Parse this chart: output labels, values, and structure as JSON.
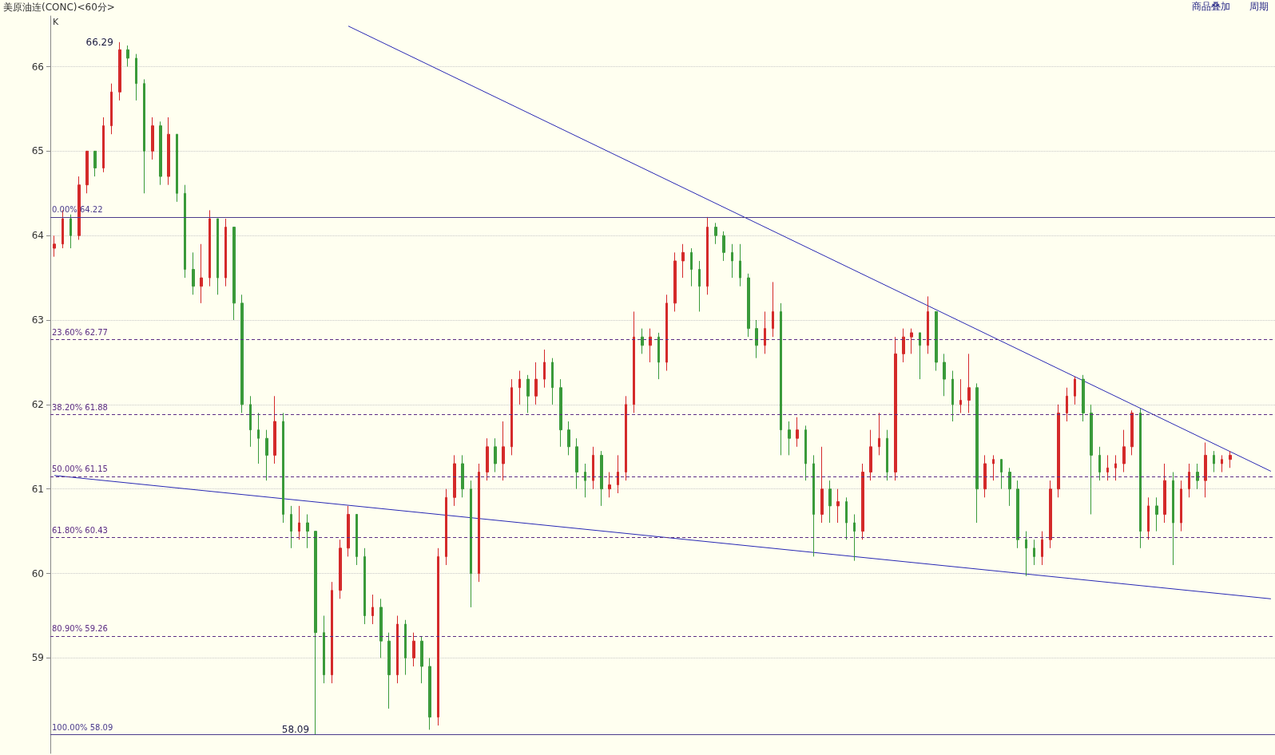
{
  "chart_data": {
    "type": "candlestick",
    "title": "美原油连(CONC)<60分>",
    "annotations": [
      "K",
      "商品叠加",
      "周期",
      "66.29",
      "58.09"
    ],
    "categories": [
      null,
      null,
      null,
      null,
      null,
      null,
      null,
      null,
      null,
      null,
      null,
      null,
      null,
      null,
      null,
      null,
      null,
      null,
      null,
      null,
      null,
      null,
      null,
      null,
      null,
      null,
      null,
      null,
      null,
      null,
      null,
      null,
      null,
      null,
      null,
      null,
      null,
      null,
      null,
      null,
      null,
      null,
      null,
      null,
      null,
      null,
      null,
      null,
      null,
      null,
      null,
      null,
      null,
      null,
      null,
      null,
      null,
      null,
      null,
      null,
      null,
      null,
      null,
      null,
      null,
      null,
      null,
      null,
      null,
      null,
      null,
      null,
      null,
      null,
      null,
      null,
      null,
      null,
      null,
      null,
      null,
      null,
      null,
      null,
      null,
      null,
      null,
      null,
      null,
      null,
      null,
      null,
      null,
      null,
      null,
      null,
      null,
      null,
      null,
      null,
      null,
      null,
      null,
      null,
      null,
      null,
      null,
      null,
      null,
      null,
      null,
      null,
      null,
      null,
      null,
      null,
      null,
      null,
      null,
      null,
      null,
      null,
      null,
      null,
      null,
      null,
      null,
      null,
      null,
      null,
      null,
      null,
      null,
      null,
      null,
      null,
      null,
      null,
      null,
      null,
      null,
      null,
      null,
      null,
      null,
      null,
      null,
      null,
      null,
      null
    ],
    "ohlc": [
      [
        63.85,
        64.0,
        63.75,
        63.9
      ],
      [
        63.9,
        64.3,
        63.85,
        64.2
      ],
      [
        64.2,
        64.25,
        63.85,
        64.0
      ],
      [
        64.0,
        64.7,
        63.95,
        64.6
      ],
      [
        64.6,
        65.0,
        64.5,
        65.0
      ],
      [
        65.0,
        65.0,
        64.7,
        64.8
      ],
      [
        64.8,
        65.4,
        64.75,
        65.3
      ],
      [
        65.3,
        65.8,
        65.2,
        65.7
      ],
      [
        65.7,
        66.29,
        65.6,
        66.2
      ],
      [
        66.2,
        66.25,
        66.0,
        66.1
      ],
      [
        66.1,
        66.15,
        65.6,
        65.8
      ],
      [
        65.8,
        65.85,
        64.5,
        65.0
      ],
      [
        65.0,
        65.4,
        64.9,
        65.3
      ],
      [
        65.3,
        65.35,
        64.6,
        64.7
      ],
      [
        64.7,
        65.4,
        64.6,
        65.2
      ],
      [
        65.2,
        65.2,
        64.4,
        64.5
      ],
      [
        64.5,
        64.6,
        63.5,
        63.6
      ],
      [
        63.6,
        63.8,
        63.3,
        63.4
      ],
      [
        63.4,
        63.9,
        63.2,
        63.5
      ],
      [
        63.5,
        64.3,
        63.4,
        64.2
      ],
      [
        64.2,
        64.2,
        63.3,
        63.5
      ],
      [
        63.5,
        64.2,
        63.4,
        64.1
      ],
      [
        64.1,
        64.1,
        63.0,
        63.2
      ],
      [
        63.2,
        63.3,
        61.9,
        62.0
      ],
      [
        62.0,
        62.1,
        61.5,
        61.7
      ],
      [
        61.7,
        61.9,
        61.3,
        61.6
      ],
      [
        61.6,
        61.7,
        61.1,
        61.4
      ],
      [
        61.4,
        62.1,
        61.3,
        61.8
      ],
      [
        61.8,
        61.9,
        60.6,
        60.7
      ],
      [
        60.7,
        60.8,
        60.3,
        60.5
      ],
      [
        60.5,
        60.8,
        60.4,
        60.6
      ],
      [
        60.6,
        60.7,
        60.3,
        60.5
      ],
      [
        60.5,
        60.5,
        58.09,
        59.3
      ],
      [
        59.3,
        59.5,
        58.7,
        58.8
      ],
      [
        58.8,
        59.9,
        58.7,
        59.8
      ],
      [
        59.8,
        60.4,
        59.7,
        60.3
      ],
      [
        60.3,
        60.8,
        60.2,
        60.7
      ],
      [
        60.7,
        60.7,
        60.1,
        60.2
      ],
      [
        60.2,
        60.3,
        59.4,
        59.5
      ],
      [
        59.5,
        59.75,
        59.4,
        59.6
      ],
      [
        59.6,
        59.7,
        59.0,
        59.2
      ],
      [
        59.2,
        59.3,
        58.4,
        58.8
      ],
      [
        58.8,
        59.5,
        58.7,
        59.4
      ],
      [
        59.4,
        59.45,
        58.8,
        59.0
      ],
      [
        59.0,
        59.3,
        58.9,
        59.2
      ],
      [
        59.2,
        59.25,
        58.7,
        58.9
      ],
      [
        58.9,
        59.0,
        58.15,
        58.3
      ],
      [
        58.3,
        60.3,
        58.2,
        60.2
      ],
      [
        60.2,
        61.0,
        60.1,
        60.9
      ],
      [
        60.9,
        61.4,
        60.8,
        61.3
      ],
      [
        61.3,
        61.4,
        60.9,
        61.0
      ],
      [
        61.0,
        61.1,
        59.6,
        60.0
      ],
      [
        60.0,
        61.3,
        59.9,
        61.2
      ],
      [
        61.2,
        61.6,
        61.1,
        61.5
      ],
      [
        61.5,
        61.6,
        61.2,
        61.3
      ],
      [
        61.3,
        61.8,
        61.1,
        61.5
      ],
      [
        61.5,
        62.3,
        61.4,
        62.2
      ],
      [
        62.2,
        62.4,
        62.0,
        62.3
      ],
      [
        62.3,
        62.35,
        61.9,
        62.1
      ],
      [
        62.1,
        62.5,
        62.0,
        62.3
      ],
      [
        62.3,
        62.65,
        62.2,
        62.5
      ],
      [
        62.5,
        62.55,
        62.0,
        62.2
      ],
      [
        62.2,
        62.3,
        61.5,
        61.7
      ],
      [
        61.7,
        61.8,
        61.4,
        61.5
      ],
      [
        61.5,
        61.6,
        61.0,
        61.2
      ],
      [
        61.2,
        61.3,
        60.9,
        61.1
      ],
      [
        61.1,
        61.5,
        61.0,
        61.4
      ],
      [
        61.4,
        61.45,
        60.8,
        61.0
      ],
      [
        61.0,
        61.2,
        60.9,
        61.05
      ],
      [
        61.05,
        61.4,
        60.95,
        61.2
      ],
      [
        61.2,
        62.1,
        61.1,
        62.0
      ],
      [
        62.0,
        63.1,
        61.9,
        62.8
      ],
      [
        62.8,
        62.9,
        62.6,
        62.7
      ],
      [
        62.7,
        62.9,
        62.5,
        62.8
      ],
      [
        62.8,
        62.85,
        62.3,
        62.5
      ],
      [
        62.5,
        63.3,
        62.4,
        63.2
      ],
      [
        63.2,
        63.8,
        63.1,
        63.7
      ],
      [
        63.7,
        63.9,
        63.5,
        63.8
      ],
      [
        63.8,
        63.85,
        63.4,
        63.6
      ],
      [
        63.6,
        63.7,
        63.1,
        63.4
      ],
      [
        63.4,
        64.22,
        63.3,
        64.1
      ],
      [
        64.1,
        64.15,
        63.9,
        64.0
      ],
      [
        64.0,
        64.05,
        63.7,
        63.8
      ],
      [
        63.8,
        63.9,
        63.5,
        63.7
      ],
      [
        63.7,
        63.9,
        63.4,
        63.5
      ],
      [
        63.5,
        63.55,
        62.8,
        62.9
      ],
      [
        62.9,
        63.0,
        62.55,
        62.7
      ],
      [
        62.7,
        63.1,
        62.6,
        62.9
      ],
      [
        62.9,
        63.45,
        62.8,
        63.1
      ],
      [
        63.1,
        63.2,
        61.4,
        61.7
      ],
      [
        61.7,
        61.8,
        61.4,
        61.6
      ],
      [
        61.6,
        61.85,
        61.5,
        61.7
      ],
      [
        61.7,
        61.75,
        61.1,
        61.3
      ],
      [
        61.3,
        61.4,
        60.2,
        60.7
      ],
      [
        60.7,
        61.5,
        60.6,
        61.0
      ],
      [
        61.0,
        61.1,
        60.6,
        60.8
      ],
      [
        60.8,
        61.0,
        60.6,
        60.85
      ],
      [
        60.85,
        60.9,
        60.4,
        60.6
      ],
      [
        60.6,
        60.7,
        60.15,
        60.5
      ],
      [
        60.5,
        61.3,
        60.4,
        61.2
      ],
      [
        61.2,
        61.7,
        61.1,
        61.5
      ],
      [
        61.5,
        61.9,
        61.4,
        61.6
      ],
      [
        61.6,
        61.7,
        61.1,
        61.2
      ],
      [
        61.2,
        62.8,
        61.1,
        62.6
      ],
      [
        62.6,
        62.9,
        62.5,
        62.8
      ],
      [
        62.8,
        62.9,
        62.6,
        62.85
      ],
      [
        62.85,
        62.85,
        62.3,
        62.7
      ],
      [
        62.7,
        63.28,
        62.6,
        63.1
      ],
      [
        63.1,
        63.1,
        62.4,
        62.5
      ],
      [
        62.5,
        62.6,
        62.1,
        62.3
      ],
      [
        62.3,
        62.4,
        61.8,
        62.0
      ],
      [
        62.0,
        62.3,
        61.9,
        62.05
      ],
      [
        62.05,
        62.6,
        61.9,
        62.2
      ],
      [
        62.2,
        62.25,
        60.6,
        61.0
      ],
      [
        61.0,
        61.4,
        60.9,
        61.3
      ],
      [
        61.3,
        61.4,
        61.1,
        61.35
      ],
      [
        61.35,
        61.35,
        61.0,
        61.2
      ],
      [
        61.2,
        61.25,
        60.8,
        61.0
      ],
      [
        61.0,
        61.1,
        60.3,
        60.4
      ],
      [
        60.4,
        60.5,
        59.97,
        60.3
      ],
      [
        60.3,
        60.4,
        60.1,
        60.2
      ],
      [
        60.2,
        60.5,
        60.1,
        60.4
      ],
      [
        60.4,
        61.1,
        60.3,
        61.0
      ],
      [
        61.0,
        62.0,
        60.9,
        61.9
      ],
      [
        61.9,
        62.2,
        61.8,
        62.1
      ],
      [
        62.1,
        62.33,
        62.0,
        62.3
      ],
      [
        62.3,
        62.35,
        61.8,
        61.9
      ],
      [
        61.9,
        62.0,
        60.7,
        61.4
      ],
      [
        61.4,
        61.5,
        61.1,
        61.2
      ],
      [
        61.2,
        61.4,
        61.1,
        61.25
      ],
      [
        61.25,
        61.4,
        61.1,
        61.3
      ],
      [
        61.3,
        61.7,
        61.2,
        61.5
      ],
      [
        61.5,
        61.93,
        61.4,
        61.9
      ],
      [
        61.9,
        61.95,
        60.3,
        60.5
      ],
      [
        60.5,
        60.9,
        60.4,
        60.8
      ],
      [
        60.8,
        60.9,
        60.5,
        60.7
      ],
      [
        60.7,
        61.3,
        60.6,
        61.1
      ],
      [
        61.1,
        61.2,
        60.1,
        60.6
      ],
      [
        60.6,
        61.1,
        60.5,
        61.0
      ],
      [
        61.0,
        61.3,
        60.9,
        61.2
      ],
      [
        61.2,
        61.3,
        61.0,
        61.1
      ],
      [
        61.1,
        61.55,
        60.9,
        61.4
      ],
      [
        61.4,
        61.45,
        61.2,
        61.3
      ],
      [
        61.3,
        61.4,
        61.2,
        61.35
      ],
      [
        61.35,
        61.45,
        61.25,
        61.4
      ],
      null,
      null,
      null,
      null,
      null
    ],
    "colors": [
      "#d42a2a",
      "#d42a2a",
      "#3a9a3a",
      "#d42a2a",
      "#d42a2a",
      "#3a9a3a",
      "#d42a2a",
      "#d42a2a",
      "#d42a2a",
      "#3a9a3a",
      "#3a9a3a",
      "#3a9a3a",
      "#d42a2a",
      "#3a9a3a",
      "#d42a2a",
      "#3a9a3a",
      "#3a9a3a",
      "#3a9a3a",
      "#d42a2a",
      "#d42a2a",
      "#3a9a3a",
      "#d42a2a",
      "#3a9a3a",
      "#3a9a3a",
      "#3a9a3a",
      "#3a9a3a",
      "#3a9a3a",
      "#d42a2a",
      "#3a9a3a",
      "#3a9a3a",
      "#d42a2a",
      "#3a9a3a",
      "#3a9a3a",
      "#3a9a3a",
      "#d42a2a",
      "#d42a2a",
      "#d42a2a",
      "#3a9a3a",
      "#3a9a3a",
      "#d42a2a",
      "#3a9a3a",
      "#3a9a3a",
      "#d42a2a",
      "#3a9a3a",
      "#d42a2a",
      "#3a9a3a",
      "#3a9a3a",
      "#d42a2a",
      "#d42a2a",
      "#d42a2a",
      "#3a9a3a",
      "#3a9a3a",
      "#d42a2a",
      "#d42a2a",
      "#3a9a3a",
      "#d42a2a",
      "#d42a2a",
      "#d42a2a",
      "#3a9a3a",
      "#d42a2a",
      "#d42a2a",
      "#3a9a3a",
      "#3a9a3a",
      "#3a9a3a",
      "#3a9a3a",
      "#3a9a3a",
      "#d42a2a",
      "#3a9a3a",
      "#d42a2a",
      "#d42a2a",
      "#d42a2a",
      "#d42a2a",
      "#3a9a3a",
      "#d42a2a",
      "#3a9a3a",
      "#d42a2a",
      "#d42a2a",
      "#d42a2a",
      "#3a9a3a",
      "#3a9a3a",
      "#d42a2a",
      "#3a9a3a",
      "#3a9a3a",
      "#3a9a3a",
      "#3a9a3a",
      "#3a9a3a",
      "#3a9a3a",
      "#d42a2a",
      "#d42a2a",
      "#3a9a3a",
      "#3a9a3a",
      "#d42a2a",
      "#3a9a3a",
      "#3a9a3a",
      "#d42a2a",
      "#3a9a3a",
      "#d42a2a",
      "#3a9a3a",
      "#3a9a3a",
      "#d42a2a",
      "#d42a2a",
      "#d42a2a",
      "#3a9a3a",
      "#d42a2a",
      "#d42a2a",
      "#d42a2a",
      "#3a9a3a",
      "#d42a2a",
      "#3a9a3a",
      "#3a9a3a",
      "#3a9a3a",
      "#d42a2a",
      "#d42a2a",
      "#3a9a3a",
      "#d42a2a",
      "#d42a2a",
      "#3a9a3a",
      "#3a9a3a",
      "#3a9a3a",
      "#3a9a3a",
      "#3a9a3a",
      "#d42a2a",
      "#d42a2a",
      "#d42a2a",
      "#d42a2a",
      "#d42a2a",
      "#3a9a3a",
      "#3a9a3a",
      "#3a9a3a",
      "#d42a2a",
      "#d42a2a",
      "#d42a2a",
      "#d42a2a",
      "#3a9a3a",
      "#d42a2a",
      "#3a9a3a",
      "#d42a2a",
      "#3a9a3a",
      "#d42a2a",
      "#d42a2a",
      "#3a9a3a",
      "#d42a2a",
      "#3a9a3a",
      "#d42a2a",
      "#d42a2a",
      null,
      null,
      null,
      null,
      null
    ],
    "series": [
      {
        "type": "line",
        "color": "#2828b4",
        "values": [
          null,
          null,
          null,
          null,
          null,
          null,
          null,
          null,
          null,
          null,
          null,
          null,
          null,
          null,
          null,
          null,
          null,
          null,
          null,
          null,
          null,
          null,
          null,
          null,
          null,
          null,
          null,
          null,
          null,
          null,
          null,
          null,
          null,
          null,
          null,
          null,
          66.48,
          null,
          null,
          null,
          null,
          null,
          null,
          null,
          null,
          null,
          null,
          null,
          null,
          null,
          null,
          null,
          null,
          null,
          null,
          null,
          null,
          null,
          null,
          null,
          null,
          null,
          null,
          null,
          null,
          null,
          null,
          null,
          null,
          null,
          null,
          null,
          null,
          null,
          null,
          null,
          null,
          null,
          null,
          null,
          null,
          null,
          null,
          null,
          null,
          null,
          null,
          null,
          null,
          null,
          null,
          null,
          null,
          null,
          null,
          null,
          null,
          null,
          null,
          null,
          null,
          null,
          null,
          null,
          null,
          null,
          null,
          null,
          null,
          null,
          null,
          null,
          null,
          null,
          null,
          null,
          null,
          null,
          null,
          null,
          null,
          null,
          null,
          null,
          null,
          null,
          null,
          null,
          null,
          null,
          null,
          null,
          null,
          null,
          null,
          null,
          null,
          null,
          null,
          null,
          null,
          null,
          null,
          null,
          null,
          null,
          null,
          null,
          null,
          61.21
        ]
      },
      {
        "type": "line",
        "color": "#2828b4",
        "values": [
          61.16,
          null,
          null,
          null,
          null,
          null,
          null,
          null,
          null,
          null,
          null,
          null,
          null,
          null,
          null,
          null,
          null,
          null,
          null,
          null,
          null,
          null,
          null,
          null,
          null,
          null,
          null,
          null,
          null,
          null,
          null,
          null,
          null,
          null,
          null,
          null,
          null,
          null,
          null,
          null,
          null,
          null,
          null,
          null,
          null,
          null,
          null,
          null,
          null,
          null,
          null,
          null,
          null,
          null,
          null,
          null,
          null,
          null,
          null,
          null,
          null,
          null,
          null,
          null,
          null,
          null,
          null,
          null,
          null,
          null,
          null,
          null,
          null,
          null,
          null,
          null,
          null,
          null,
          null,
          null,
          null,
          null,
          null,
          null,
          null,
          null,
          null,
          null,
          null,
          null,
          null,
          null,
          null,
          null,
          null,
          null,
          null,
          null,
          null,
          null,
          null,
          null,
          null,
          null,
          null,
          null,
          null,
          null,
          null,
          null,
          null,
          null,
          null,
          null,
          null,
          null,
          null,
          null,
          null,
          null,
          null,
          null,
          null,
          null,
          null,
          null,
          null,
          null,
          null,
          null,
          null,
          null,
          null,
          null,
          null,
          null,
          null,
          null,
          null,
          null,
          null,
          null,
          null,
          null,
          null,
          null,
          null,
          null,
          null,
          59.7
        ]
      }
    ],
    "ref_lines": [
      {
        "axis": "y",
        "value": 64.22,
        "label": "0.00% 64.22",
        "color": "#4b3c8c",
        "line_style": "solid"
      },
      {
        "axis": "y",
        "value": 62.77,
        "label": "23.60% 62.77",
        "color": "#5b2c83",
        "line_style": "dashed"
      },
      {
        "axis": "y",
        "value": 61.88,
        "label": "38.20% 61.88",
        "color": "#5b2c83",
        "line_style": "dashed"
      },
      {
        "axis": "y",
        "value": 61.15,
        "label": "50.00% 61.15",
        "color": "#5b2c83",
        "line_style": "dashed"
      },
      {
        "axis": "y",
        "value": 60.43,
        "label": "61.80% 60.43",
        "color": "#5b2c83",
        "line_style": "dashed"
      },
      {
        "axis": "y",
        "value": 59.26,
        "label": "80.90% 59.26",
        "color": "#5b2c83",
        "line_style": "dashed"
      },
      {
        "axis": "y",
        "value": 58.09,
        "label": "100.00% 58.09",
        "color": "#4b3c8c",
        "line_style": "solid"
      }
    ],
    "ylim": [
      57.87,
      66.6
    ],
    "yticks": [
      59,
      60,
      61,
      62,
      63,
      64,
      65,
      66
    ],
    "grid": "y",
    "tick_labels": "y"
  }
}
